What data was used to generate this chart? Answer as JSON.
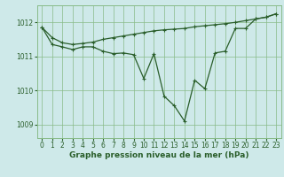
{
  "title": "Graphe pression niveau de la mer (hPa)",
  "background_color": "#cee9e9",
  "grid_color": "#88bb88",
  "line_color": "#2a5e2a",
  "xlim": [
    -0.5,
    23.5
  ],
  "ylim": [
    1008.6,
    1012.5
  ],
  "yticks": [
    1009,
    1010,
    1011,
    1012
  ],
  "xticks": [
    0,
    1,
    2,
    3,
    4,
    5,
    6,
    7,
    8,
    9,
    10,
    11,
    12,
    13,
    14,
    15,
    16,
    17,
    18,
    19,
    20,
    21,
    22,
    23
  ],
  "series1_x": [
    0,
    1,
    2,
    3,
    4,
    5,
    6,
    7,
    8,
    9,
    10,
    11,
    12,
    13,
    14,
    15,
    16,
    17,
    18,
    19,
    20,
    21,
    22,
    23
  ],
  "series1_y": [
    1011.85,
    1011.55,
    1011.4,
    1011.35,
    1011.38,
    1011.42,
    1011.5,
    1011.55,
    1011.6,
    1011.65,
    1011.7,
    1011.75,
    1011.78,
    1011.8,
    1011.82,
    1011.87,
    1011.9,
    1011.93,
    1011.96,
    1012.0,
    1012.05,
    1012.1,
    1012.15,
    1012.25
  ],
  "series2_x": [
    0,
    1,
    2,
    3,
    4,
    5,
    6,
    7,
    8,
    9,
    10,
    11,
    12,
    13,
    14,
    15,
    16,
    17,
    18,
    19,
    20,
    21,
    22,
    23
  ],
  "series2_y": [
    1011.85,
    1011.35,
    1011.28,
    1011.2,
    1011.28,
    1011.28,
    1011.15,
    1011.08,
    1011.1,
    1011.05,
    1010.35,
    1011.08,
    1009.83,
    1009.55,
    1009.1,
    1010.3,
    1010.05,
    1011.1,
    1011.15,
    1011.82,
    1011.82,
    1012.1,
    1012.15,
    1012.25
  ],
  "title_fontsize": 6.5,
  "tick_fontsize": 5.5
}
